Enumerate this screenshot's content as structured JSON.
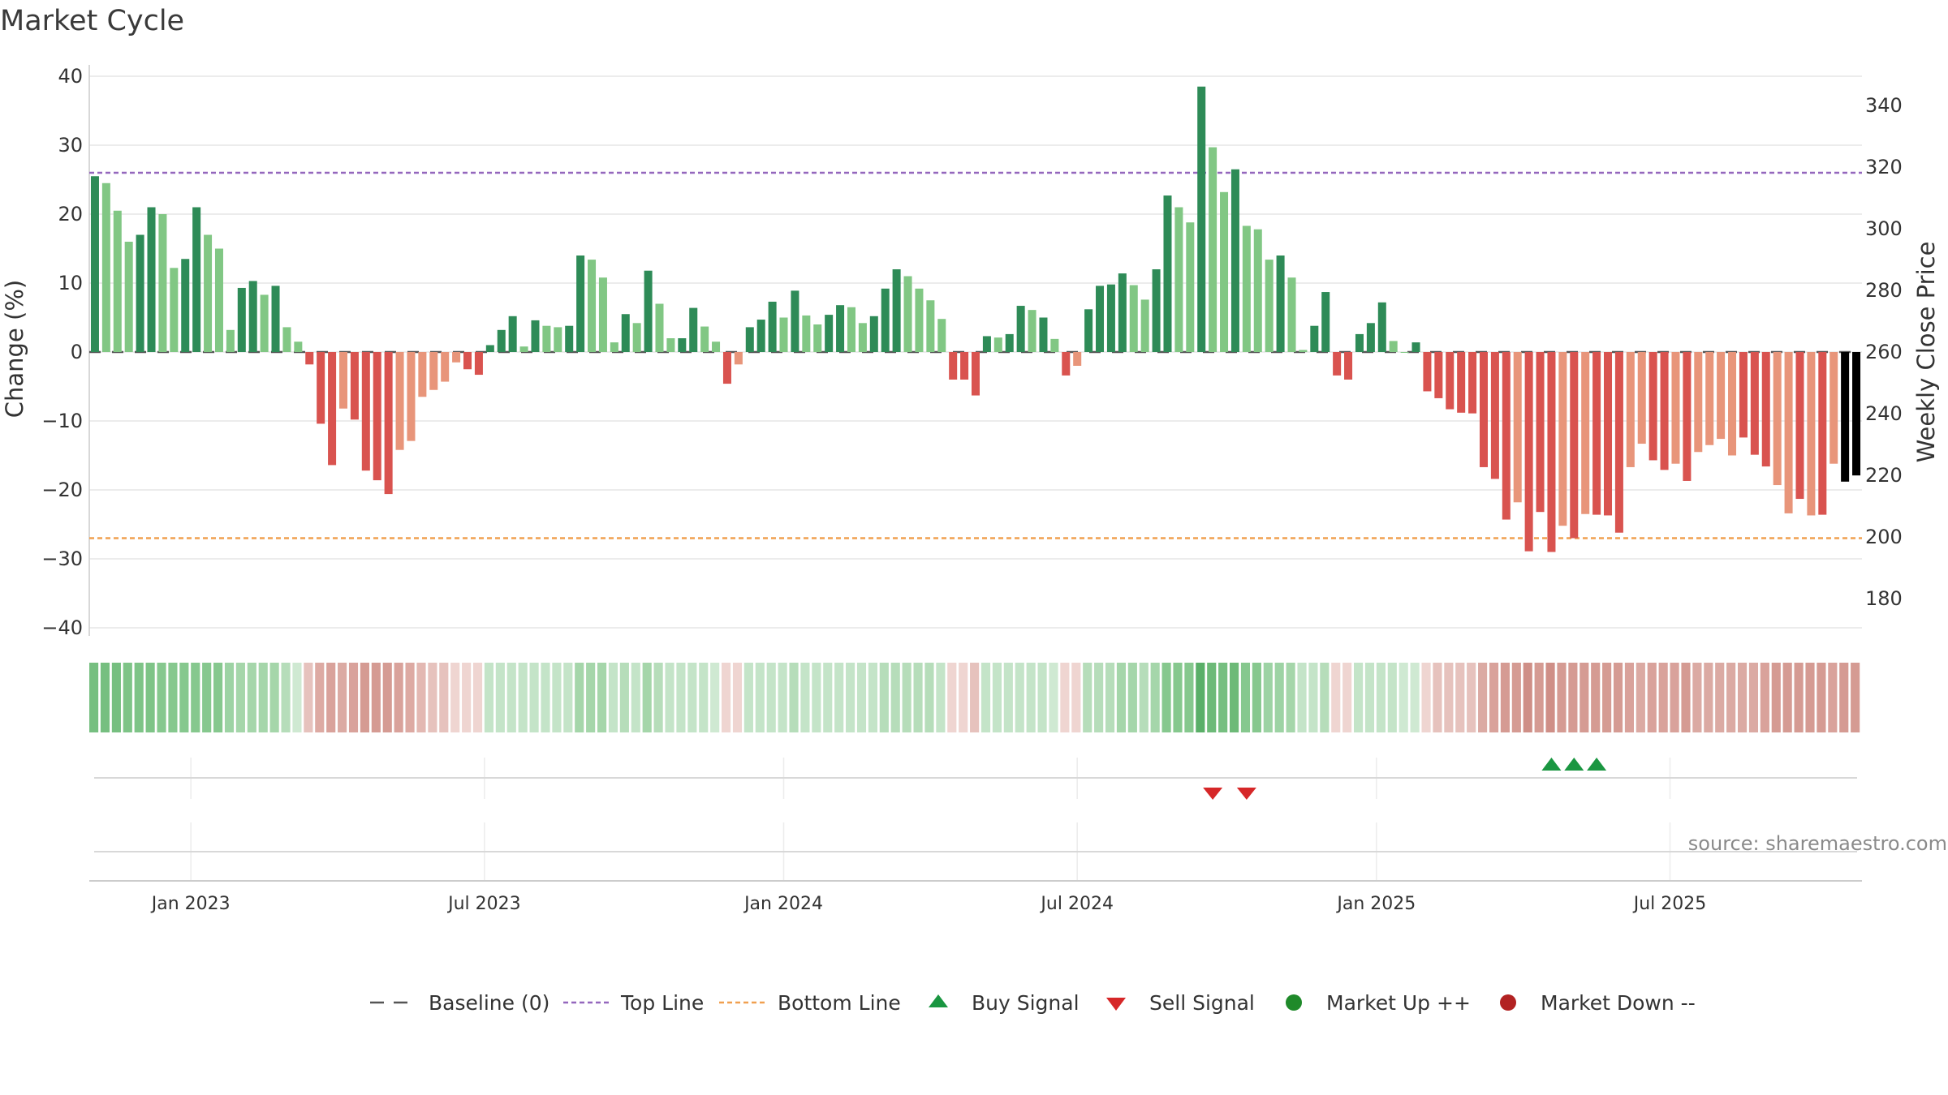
{
  "chart_data": {
    "type": "bar",
    "title": "Market Cycle",
    "ylabel": "Change (%)",
    "y2label": "Weekly Close Price",
    "ylim": [
      -42,
      42
    ],
    "yticks": [
      40,
      30,
      20,
      10,
      0,
      -10,
      -20,
      -30,
      -40
    ],
    "y2lim": [
      168,
      352
    ],
    "y2ticks": [
      340,
      320,
      300,
      280,
      260,
      240,
      220,
      200,
      180
    ],
    "reference_lines": {
      "baseline": 0,
      "top_line": 26,
      "bottom_line": -27
    },
    "x_start_week": 0,
    "x_dates": {
      "first_week": "2022-10-31",
      "interval": "weekly"
    },
    "date_ticks": [
      {
        "label": "Jan 2023",
        "week": 9
      },
      {
        "label": "Jul 2023",
        "week": 35
      },
      {
        "label": "Jan 2024",
        "week": 61.5
      },
      {
        "label": "Jul 2024",
        "week": 87.5
      },
      {
        "label": "Jan 2025",
        "week": 114
      },
      {
        "label": "Jul 2025",
        "week": 140
      }
    ],
    "series": [
      {
        "name": "Change (%)",
        "values": [
          25.5,
          24.5,
          20.5,
          16,
          17,
          21,
          20,
          12.2,
          13.5,
          21,
          17,
          15,
          3.2,
          9.3,
          10.3,
          8.3,
          9.6,
          3.6,
          1.5,
          -1.8,
          -10.4,
          -16.4,
          -8.2,
          -9.8,
          -17.2,
          -18.6,
          -20.6,
          -14.2,
          -12.9,
          -6.5,
          -5.5,
          -4.3,
          -1.5,
          -2.5,
          -3.3,
          1,
          3.2,
          5.2,
          0.8,
          4.6,
          3.8,
          3.6,
          3.8,
          14,
          13.4,
          10.8,
          1.4,
          5.5,
          4.2,
          11.8,
          7,
          2,
          2,
          6.4,
          3.7,
          1.5,
          -4.6,
          -1.8,
          3.6,
          4.7,
          7.3,
          5,
          8.9,
          5.3,
          4,
          5.4,
          6.8,
          6.5,
          4.2,
          5.2,
          9.2,
          12,
          11,
          9.2,
          7.5,
          4.8,
          -4,
          -4,
          -6.3,
          2.3,
          2.1,
          2.6,
          6.7,
          6.1,
          5,
          1.9,
          -3.4,
          -2,
          6.2,
          9.6,
          9.8,
          11.4,
          9.7,
          7.6,
          12,
          22.7,
          21,
          18.8,
          38.5,
          29.7,
          23.2,
          26.5,
          18.3,
          17.8,
          13.4,
          14,
          10.8,
          0.3,
          3.8,
          8.7,
          -3.4,
          -4,
          2.6,
          4.2,
          7.2,
          1.6,
          0,
          1.4,
          -5.7,
          -6.7,
          -8.3,
          -8.8,
          -8.9,
          -16.7,
          -18.4,
          -24.3,
          -21.8,
          -28.9,
          -23.2,
          -29,
          -25.2,
          -27,
          -23.5,
          -23.6,
          -23.7,
          -26.2,
          -16.7,
          -13.3,
          -15.7,
          -17.1,
          -16.2,
          -18.7,
          -14.5,
          -13.5,
          -12.6,
          -15,
          -12.4,
          -14.9,
          -16.6,
          -19.3,
          -23.4,
          -21.3,
          -23.7,
          -23.6,
          -16.2,
          -18.8,
          -17.9
        ],
        "colors": [
          "#2e8b57",
          "#81c784",
          "#81c784",
          "#81c784",
          "#2e8b57",
          "#2e8b57",
          "#81c784",
          "#81c784",
          "#2e8b57",
          "#2e8b57",
          "#81c784",
          "#81c784",
          "#81c784",
          "#2e8b57",
          "#2e8b57",
          "#81c784",
          "#2e8b57",
          "#81c784",
          "#81c784",
          "#d9534f",
          "#d9534f",
          "#d9534f",
          "#e8957a",
          "#d9534f",
          "#d9534f",
          "#d9534f",
          "#d9534f",
          "#e8957a",
          "#e8957a",
          "#e8957a",
          "#e8957a",
          "#e8957a",
          "#e8957a",
          "#d9534f",
          "#d9534f",
          "#2e8b57",
          "#2e8b57",
          "#2e8b57",
          "#81c784",
          "#2e8b57",
          "#81c784",
          "#81c784",
          "#2e8b57",
          "#2e8b57",
          "#81c784",
          "#81c784",
          "#81c784",
          "#2e8b57",
          "#81c784",
          "#2e8b57",
          "#81c784",
          "#81c784",
          "#2e8b57",
          "#2e8b57",
          "#81c784",
          "#81c784",
          "#d9534f",
          "#e8957a",
          "#2e8b57",
          "#2e8b57",
          "#2e8b57",
          "#81c784",
          "#2e8b57",
          "#81c784",
          "#81c784",
          "#2e8b57",
          "#2e8b57",
          "#81c784",
          "#81c784",
          "#2e8b57",
          "#2e8b57",
          "#2e8b57",
          "#81c784",
          "#81c784",
          "#81c784",
          "#81c784",
          "#d9534f",
          "#d9534f",
          "#d9534f",
          "#2e8b57",
          "#81c784",
          "#2e8b57",
          "#2e8b57",
          "#81c784",
          "#2e8b57",
          "#81c784",
          "#d9534f",
          "#e8957a",
          "#2e8b57",
          "#2e8b57",
          "#2e8b57",
          "#2e8b57",
          "#81c784",
          "#81c784",
          "#2e8b57",
          "#2e8b57",
          "#81c784",
          "#81c784",
          "#2e8b57",
          "#81c784",
          "#81c784",
          "#2e8b57",
          "#81c784",
          "#81c784",
          "#81c784",
          "#2e8b57",
          "#81c784",
          "#81c784",
          "#2e8b57",
          "#2e8b57",
          "#d9534f",
          "#d9534f",
          "#2e8b57",
          "#2e8b57",
          "#2e8b57",
          "#81c784",
          "#81c784",
          "#2e8b57",
          "#d9534f",
          "#d9534f",
          "#d9534f",
          "#d9534f",
          "#d9534f",
          "#d9534f",
          "#d9534f",
          "#d9534f",
          "#e8957a",
          "#d9534f",
          "#d9534f",
          "#d9534f",
          "#e8957a",
          "#d9534f",
          "#e8957a",
          "#d9534f",
          "#d9534f",
          "#d9534f",
          "#e8957a",
          "#e8957a",
          "#d9534f",
          "#d9534f",
          "#e8957a",
          "#d9534f",
          "#e8957a",
          "#e8957a",
          "#e8957a",
          "#e8957a",
          "#d9534f",
          "#d9534f",
          "#d9534f",
          "#e8957a",
          "#e8957a",
          "#d9534f",
          "#e8957a",
          "#d9534f",
          "#e8957a"
        ]
      }
    ],
    "heat_strip_colors": [
      "#76bf80",
      "#76bf80",
      "#76bf80",
      "#7ec487",
      "#7ec487",
      "#7ec487",
      "#86c88e",
      "#86c88e",
      "#86c88e",
      "#86c88e",
      "#86c88e",
      "#86c88e",
      "#9dd3a4",
      "#a5d6aa",
      "#a5d6aa",
      "#a5d6aa",
      "#a5d6aa",
      "#b6ddba",
      "#cfe9d2",
      "#e6c2bd",
      "#ddaaa3",
      "#d9a29b",
      "#dbaaa3",
      "#d9a29b",
      "#d59b93",
      "#d59b93",
      "#d59b93",
      "#d9a29b",
      "#ddaaa3",
      "#e3b8b2",
      "#e6c2bd",
      "#e6c2bd",
      "#efd5d1",
      "#efd5d1",
      "#efd5d1",
      "#c4e4c8",
      "#c4e4c8",
      "#c4e4c8",
      "#c4e4c8",
      "#c4e4c8",
      "#c4e4c8",
      "#c4e4c8",
      "#c4e4c8",
      "#a5d6aa",
      "#a5d6aa",
      "#a5d6aa",
      "#c4e4c8",
      "#b6ddba",
      "#c4e4c8",
      "#a5d6aa",
      "#b6ddba",
      "#c4e4c8",
      "#c4e4c8",
      "#c4e4c8",
      "#c4e4c8",
      "#cfe9d2",
      "#efd5d1",
      "#efd5d1",
      "#c4e4c8",
      "#c4e4c8",
      "#c4e4c8",
      "#c4e4c8",
      "#b6ddba",
      "#c4e4c8",
      "#c4e4c8",
      "#c4e4c8",
      "#c4e4c8",
      "#c4e4c8",
      "#c4e4c8",
      "#c4e4c8",
      "#b6ddba",
      "#b6ddba",
      "#b6ddba",
      "#b6ddba",
      "#b6ddba",
      "#c4e4c8",
      "#efd5d1",
      "#efd5d1",
      "#e6c2bd",
      "#c4e4c8",
      "#c4e4c8",
      "#c4e4c8",
      "#c4e4c8",
      "#c4e4c8",
      "#c4e4c8",
      "#cfe9d2",
      "#efd5d1",
      "#efd5d1",
      "#b6ddba",
      "#b6ddba",
      "#b6ddba",
      "#a5d6aa",
      "#a5d6aa",
      "#b6ddba",
      "#a5d6aa",
      "#86c88e",
      "#86c88e",
      "#86c88e",
      "#5aaf68",
      "#6dba78",
      "#76bf80",
      "#6dba78",
      "#86c88e",
      "#86c88e",
      "#9dd3a4",
      "#9dd3a4",
      "#a5d6aa",
      "#c4e4c8",
      "#c4e4c8",
      "#b6ddba",
      "#efd5d1",
      "#efd5d1",
      "#c4e4c8",
      "#c4e4c8",
      "#c4e4c8",
      "#c4e4c8",
      "#cfe9d2",
      "#cfe9d2",
      "#efd5d1",
      "#e6c2bd",
      "#e6c2bd",
      "#e6c2bd",
      "#e6c2bd",
      "#dbaaa3",
      "#d9a29b",
      "#d59b93",
      "#d59b93",
      "#cf8f87",
      "#d59b93",
      "#cf8f87",
      "#d59b93",
      "#d59b93",
      "#d59b93",
      "#d59b93",
      "#d59b93",
      "#d59b93",
      "#d9a29b",
      "#dbaaa3",
      "#d9a29b",
      "#d9a29b",
      "#d9a29b",
      "#d59b93",
      "#dbaaa3",
      "#dbaaa3",
      "#dbaaa3",
      "#dbaaa3",
      "#dbaaa3",
      "#dbaaa3",
      "#d9a29b",
      "#d59b93",
      "#d59b93",
      "#d59b93",
      "#d59b93",
      "#d59b93",
      "#d9a29b",
      "#d59b93",
      "#d59b93"
    ],
    "signals": {
      "buy": [
        129,
        131,
        133
      ],
      "sell": [
        99,
        102
      ]
    },
    "market_up_weeks": [],
    "market_down_weeks": [],
    "legend": {
      "position": "bottom",
      "entries": [
        {
          "key": "baseline",
          "label": "Baseline (0)",
          "color": "#555555"
        },
        {
          "key": "top",
          "label": "Top Line",
          "color": "#9467bd"
        },
        {
          "key": "bottom",
          "label": "Bottom Line",
          "color": "#f0a050"
        },
        {
          "key": "buy",
          "label": "Buy Signal",
          "color": "#1a9641"
        },
        {
          "key": "sell",
          "label": "Sell Signal",
          "color": "#d62728"
        },
        {
          "key": "up",
          "label": "Market Up ++",
          "color": "#1f8a2a"
        },
        {
          "key": "down",
          "label": "Market Down --",
          "color": "#b22222"
        }
      ]
    },
    "source": "source: sharemaestro.com",
    "grid": true
  }
}
